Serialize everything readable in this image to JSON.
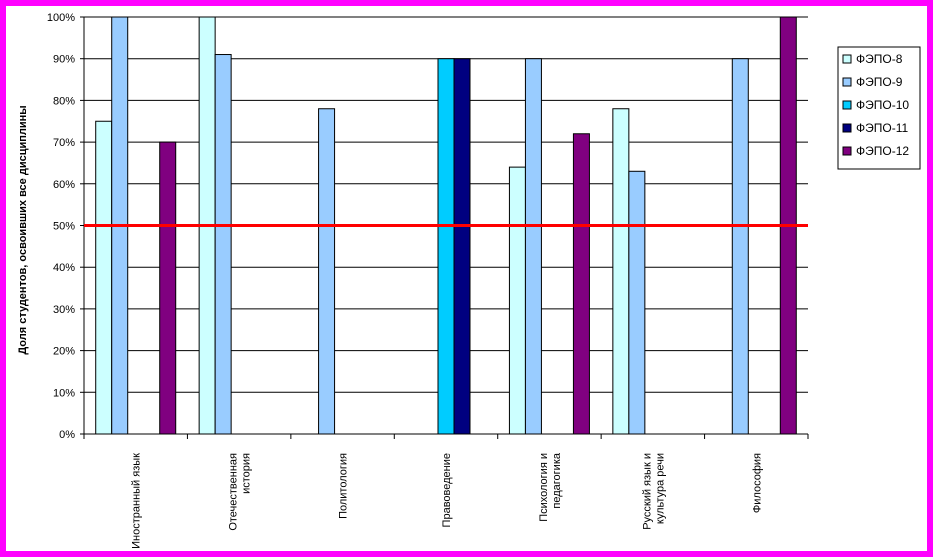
{
  "chart_data": {
    "type": "bar",
    "ylabel": "Доля студентов, освоивших все дисциплины",
    "ylim": [
      0,
      100
    ],
    "y_ticks": [
      "0%",
      "10%",
      "20%",
      "30%",
      "40%",
      "50%",
      "60%",
      "70%",
      "80%",
      "90%",
      "100%"
    ],
    "categories": [
      [
        "Иностранный язык"
      ],
      [
        "Отечественная",
        "история"
      ],
      [
        "Политология"
      ],
      [
        "Правоведение"
      ],
      [
        "Психология и",
        "педагогика"
      ],
      [
        "Русский язык и",
        "культура речи"
      ],
      [
        "Философия"
      ]
    ],
    "series": [
      {
        "name": "ФЭПО-8",
        "color": "#ccffff",
        "values": [
          75,
          100,
          null,
          null,
          64,
          78,
          null
        ]
      },
      {
        "name": "ФЭПО-9",
        "color": "#99ccff",
        "values": [
          100,
          91,
          78,
          null,
          90,
          63,
          90
        ]
      },
      {
        "name": "ФЭПО-10",
        "color": "#00ccff",
        "values": [
          null,
          null,
          null,
          90,
          null,
          null,
          null
        ]
      },
      {
        "name": "ФЭПО-11",
        "color": "#000080",
        "values": [
          null,
          null,
          null,
          90,
          null,
          null,
          null
        ]
      },
      {
        "name": "ФЭПО-12",
        "color": "#800080",
        "values": [
          70,
          null,
          null,
          null,
          72,
          null,
          100
        ]
      }
    ],
    "reference_line": {
      "value": 50,
      "color": "#ff0000"
    },
    "grid": true,
    "legend_position": "right"
  },
  "colors": {
    "frame": "#ff00ff"
  }
}
